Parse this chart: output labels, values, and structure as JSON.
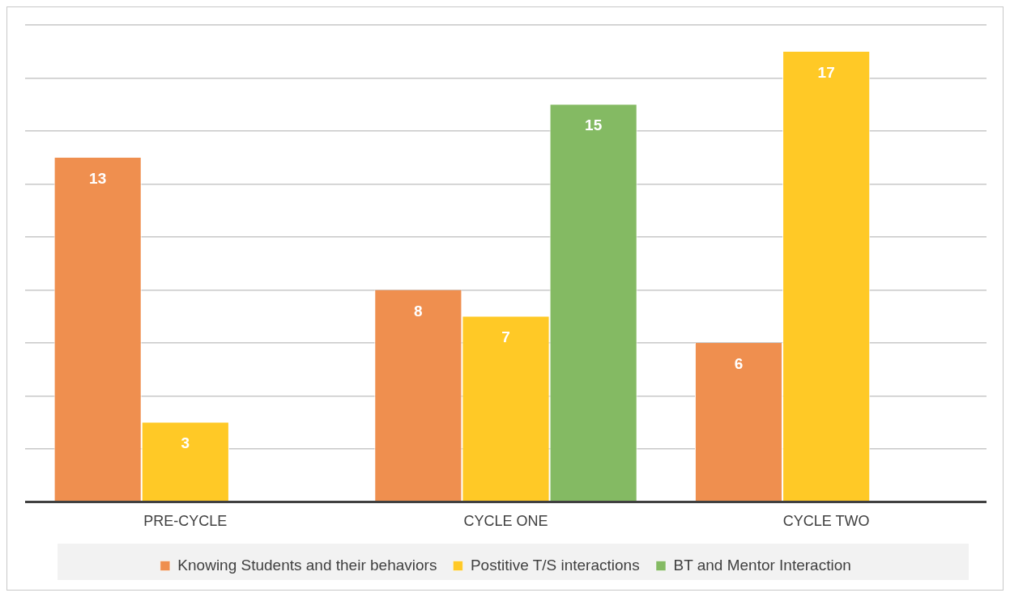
{
  "chart_data": {
    "type": "bar",
    "categories": [
      "PRE-CYCLE",
      "CYCLE ONE",
      "CYCLE TWO"
    ],
    "series": [
      {
        "name": "Knowing Students and their behaviors",
        "color": "#ef8f4f",
        "values": [
          13,
          8,
          6
        ]
      },
      {
        "name": "Postitive T/S interactions",
        "color": "#ffc926",
        "values": [
          3,
          7,
          17
        ]
      },
      {
        "name": "BT and Mentor Interaction",
        "color": "#84ba63",
        "values": [
          null,
          15,
          null
        ]
      }
    ],
    "ylim": [
      0,
      18
    ],
    "yticks": [
      {
        "value": 0,
        "label": null
      },
      {
        "value": 2,
        "label": null
      },
      {
        "value": 4,
        "label": null
      },
      {
        "value": 6,
        "label": null
      },
      {
        "value": 8,
        "label": null
      },
      {
        "value": 10,
        "label": null
      },
      {
        "value": 12,
        "label": null
      },
      {
        "value": 14,
        "label": null
      },
      {
        "value": 16,
        "label": null
      },
      {
        "value": 18,
        "label": null
      }
    ],
    "grid": "y",
    "tick_labels": "x",
    "legend": "bottom",
    "data_labels": true
  }
}
